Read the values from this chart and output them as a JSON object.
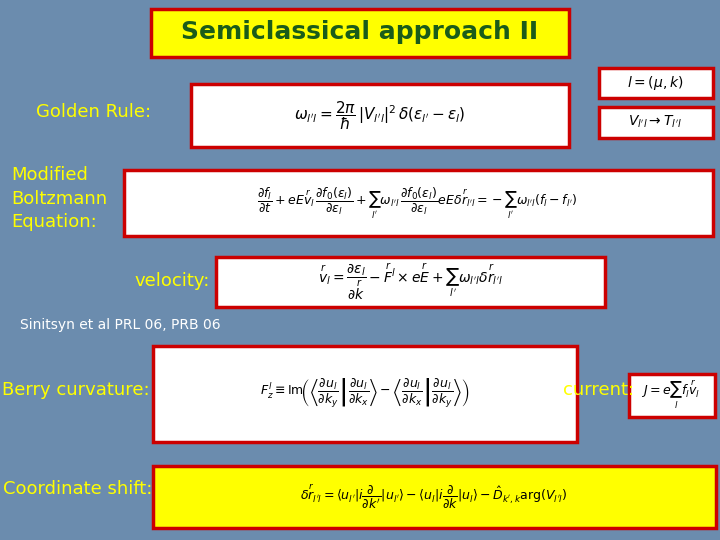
{
  "bg_color": "#6b8cae",
  "title_text": "Semiclassical approach II",
  "title_bg": "#ffff00",
  "title_fg": "#1a5c1a",
  "title_border": "#cc0000",
  "label_color": "#ffff00",
  "formula_bg": "#ffffff",
  "formula_border": "#cc0000",
  "coord_shift_bg": "#ffff00",
  "coord_shift_border": "#cc0000",
  "golden_rule_label": "Golden Rule:",
  "golden_rule_formula": "$\\omega_{l'l} = \\dfrac{2\\pi}{\\hbar}\\,|V_{l'l}|^2\\,\\delta(\\varepsilon_{l'}-\\varepsilon_l)$",
  "lk_formula": "$l = (\\mu, k)$",
  "vlv_formula": "$V_{l'l} \\rightarrow T_{l'l}$",
  "boltzmann_label": "Modified\nBoltzmann\nEquation:",
  "boltzmann_formula": "$\\dfrac{\\partial f_l}{\\partial t} + eE\\overset{r}{v}_l\\,\\dfrac{\\partial f_0(\\varepsilon_l)}{\\partial \\varepsilon_l} + \\sum_{l'}\\omega_{l'l}\\,\\dfrac{\\partial f_0(\\varepsilon_l)}{\\partial \\varepsilon_l}eE\\delta\\overset{r}{r}_{l'l} = -\\sum_{l'}\\omega_{l'l}(f_l - f_{l'})$",
  "velocity_label": "velocity:",
  "velocity_formula": "$\\overset{r}{v}_l = \\dfrac{\\partial \\varepsilon_l}{\\partial \\overset{r}{k}} - \\overset{r}{F}{}^l \\times e\\overset{r}{E} + \\sum_{l'}\\omega_{l'l}\\delta\\overset{r}{r}_{l'l}$",
  "sinitsyn_text": "Sinitsyn et al PRL 06, PRB 06",
  "berry_label": "Berry curvature:",
  "berry_formula": "$F^l_z \\equiv \\mathrm{Im}\\!\\left(\\left\\langle\\dfrac{\\partial u_l}{\\partial k_y}\\middle|\\dfrac{\\partial u_l}{\\partial k_x}\\right\\rangle - \\left\\langle\\dfrac{\\partial u_l}{\\partial k_x}\\middle|\\dfrac{\\partial u_l}{\\partial k_y}\\right\\rangle\\right)$",
  "current_label": "current:",
  "current_formula": "$J = e\\sum_l f_l \\overset{r}{v}_l$",
  "coord_label": "Coordinate shift:",
  "coord_formula": "$\\delta\\overset{r}{r}_{l'l} = \\langle u_{l'}|i\\dfrac{\\partial}{\\partial k'}|u_{l'}\\rangle - \\langle u_l|i\\dfrac{\\partial}{\\partial k}|u_l\\rangle - \\hat{D}_{k',k}\\arg(V_{l'l})$"
}
